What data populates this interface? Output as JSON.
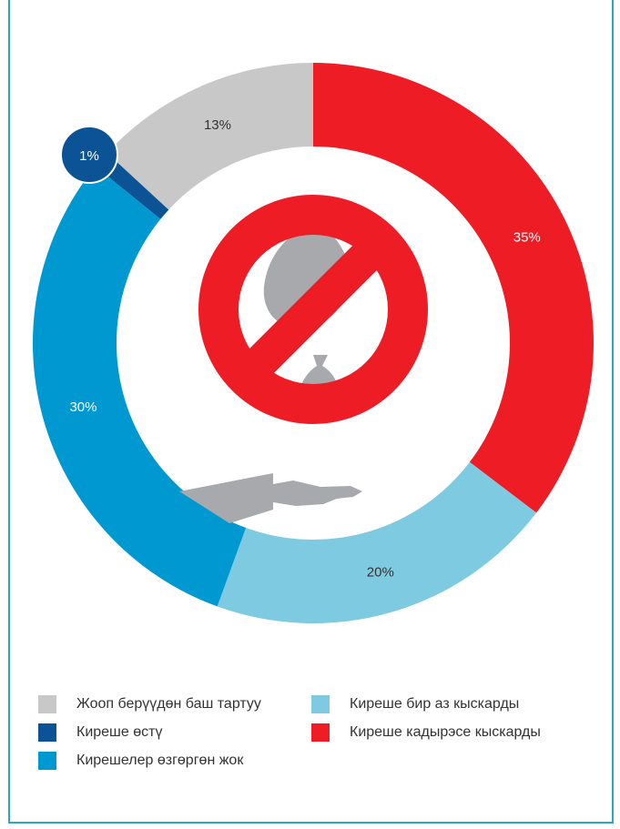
{
  "chart_data": {
    "type": "pie",
    "subtype": "donut",
    "slices": [
      {
        "label": "Кирешe кадырэсе кыскарды",
        "value": 35,
        "value_label": "35%",
        "color": "#ee1c25",
        "label_color": "#ffffff"
      },
      {
        "label": "Киреше бир аз кыскарды",
        "value": 20,
        "value_label": "20%",
        "color": "#7ecae1",
        "label_color": "#333333"
      },
      {
        "label": "Кирешелер өзгөргөн жок",
        "value": 30,
        "value_label": "30%",
        "color": "#0098d0",
        "label_color": "#ffffff"
      },
      {
        "label": "Киреше өстү",
        "value": 1,
        "value_label": "1%",
        "color": "#0b5394",
        "label_color": "#ffffff"
      },
      {
        "label": "Жооп берүүдөн баш тартуу",
        "value": 13,
        "value_label": "13%",
        "color": "#c8c8c8",
        "label_color": "#333333"
      }
    ],
    "start": "12 o'clock",
    "direction": "clockwise",
    "center_icon": "no-money-hand-icon",
    "legend": {
      "placement": "bottom",
      "columns": [
        [
          "Жооп берүүдөн баш тартуу",
          "Киреше өстү",
          "Кирешелер өзгөргөн жок"
        ],
        [
          "Киреше бир аз кыскарды",
          "Киреше кадырэсе кыскарды"
        ]
      ]
    }
  },
  "legend_items": [
    {
      "label": "Жооп берүүдөн баш тартуу",
      "color": "#c8c8c8"
    },
    {
      "label": "Киреше өстү",
      "color": "#0b5394"
    },
    {
      "label": "Кирешелер өзгөргөн жок",
      "color": "#0098d0"
    },
    {
      "label": "Киреше бир аз кыскарды",
      "color": "#7ecae1"
    },
    {
      "label": "Киреше кадырэсе кыскарды",
      "color": "#ee1c25"
    }
  ],
  "colors": {
    "frame": "#2aa6c7",
    "icon_gray": "#a7a9ac",
    "icon_red": "#ee1c25"
  }
}
